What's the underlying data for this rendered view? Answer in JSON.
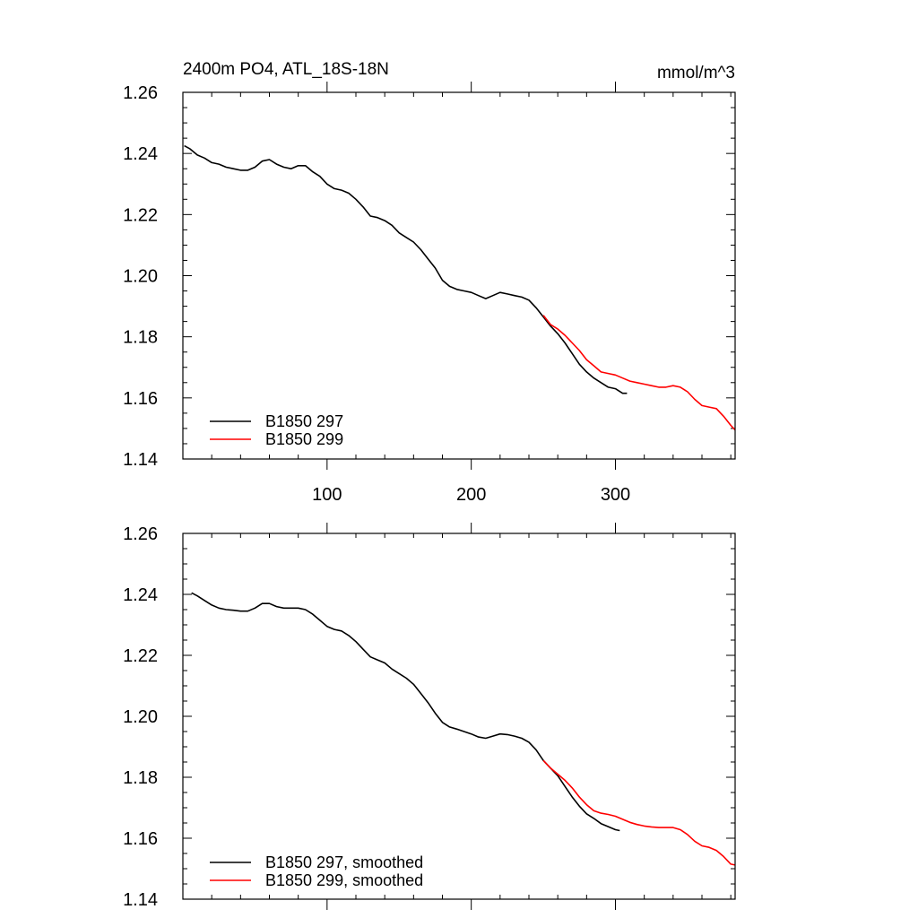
{
  "chart_data": [
    {
      "type": "line",
      "title": "2400m PO4, ATL_18S-18N",
      "units": "mmol/m^3",
      "xlabel": "",
      "ylabel": "",
      "xlim": [
        0,
        383
      ],
      "ylim": [
        1.14,
        1.26
      ],
      "yticks": [
        "1.26",
        "1.24",
        "1.22",
        "1.20",
        "1.18",
        "1.16",
        "1.14"
      ],
      "xticks": [
        "100",
        "200",
        "300"
      ],
      "grid": false,
      "legend_position": "bottom-left",
      "series": [
        {
          "name": "B1850 297",
          "color": "#000000",
          "points": [
            [
              1,
              1.2425
            ],
            [
              5,
              1.2415
            ],
            [
              10,
              1.2395
            ],
            [
              15,
              1.2385
            ],
            [
              20,
              1.237
            ],
            [
              25,
              1.2365
            ],
            [
              30,
              1.2355
            ],
            [
              35,
              1.235
            ],
            [
              40,
              1.2345
            ],
            [
              45,
              1.2345
            ],
            [
              50,
              1.2355
            ],
            [
              55,
              1.2375
            ],
            [
              60,
              1.238
            ],
            [
              65,
              1.2365
            ],
            [
              70,
              1.2355
            ],
            [
              75,
              1.235
            ],
            [
              80,
              1.236
            ],
            [
              85,
              1.236
            ],
            [
              90,
              1.234
            ],
            [
              95,
              1.2325
            ],
            [
              100,
              1.23
            ],
            [
              105,
              1.2285
            ],
            [
              110,
              1.228
            ],
            [
              115,
              1.227
            ],
            [
              120,
              1.225
            ],
            [
              125,
              1.2225
            ],
            [
              130,
              1.2195
            ],
            [
              135,
              1.219
            ],
            [
              140,
              1.218
            ],
            [
              145,
              1.2165
            ],
            [
              150,
              1.214
            ],
            [
              155,
              1.2125
            ],
            [
              160,
              1.211
            ],
            [
              165,
              1.2085
            ],
            [
              170,
              1.2055
            ],
            [
              175,
              1.2025
            ],
            [
              180,
              1.1985
            ],
            [
              185,
              1.1965
            ],
            [
              190,
              1.1955
            ],
            [
              195,
              1.195
            ],
            [
              200,
              1.1945
            ],
            [
              205,
              1.1935
            ],
            [
              210,
              1.1925
            ],
            [
              215,
              1.1935
            ],
            [
              220,
              1.1945
            ],
            [
              225,
              1.194
            ],
            [
              230,
              1.1935
            ],
            [
              235,
              1.193
            ],
            [
              240,
              1.192
            ],
            [
              245,
              1.1895
            ],
            [
              250,
              1.1865
            ],
            [
              255,
              1.1835
            ],
            [
              260,
              1.181
            ],
            [
              265,
              1.178
            ],
            [
              270,
              1.1745
            ],
            [
              275,
              1.171
            ],
            [
              280,
              1.1685
            ],
            [
              285,
              1.1665
            ],
            [
              290,
              1.165
            ],
            [
              295,
              1.1635
            ],
            [
              300,
              1.163
            ],
            [
              305,
              1.1615
            ],
            [
              308,
              1.1615
            ]
          ]
        },
        {
          "name": "B1850 299",
          "color": "#ff0000",
          "points": [
            [
              250,
              1.187
            ],
            [
              255,
              1.184
            ],
            [
              260,
              1.1825
            ],
            [
              265,
              1.1805
            ],
            [
              270,
              1.178
            ],
            [
              275,
              1.1755
            ],
            [
              280,
              1.1725
            ],
            [
              285,
              1.1705
            ],
            [
              290,
              1.1685
            ],
            [
              295,
              1.168
            ],
            [
              300,
              1.1675
            ],
            [
              305,
              1.1665
            ],
            [
              310,
              1.1655
            ],
            [
              315,
              1.165
            ],
            [
              320,
              1.1645
            ],
            [
              325,
              1.164
            ],
            [
              330,
              1.1635
            ],
            [
              335,
              1.1635
            ],
            [
              340,
              1.164
            ],
            [
              345,
              1.1635
            ],
            [
              350,
              1.162
            ],
            [
              355,
              1.1595
            ],
            [
              360,
              1.1575
            ],
            [
              365,
              1.157
            ],
            [
              370,
              1.1565
            ],
            [
              375,
              1.154
            ],
            [
              380,
              1.151
            ],
            [
              383,
              1.1495
            ]
          ]
        }
      ]
    },
    {
      "type": "line",
      "title": "",
      "xlabel": "",
      "ylabel": "",
      "xlim": [
        0,
        383
      ],
      "ylim": [
        1.14,
        1.26
      ],
      "yticks": [
        "1.26",
        "1.24",
        "1.22",
        "1.20",
        "1.18",
        "1.16",
        "1.14"
      ],
      "grid": false,
      "legend_position": "bottom-left",
      "series": [
        {
          "name": "B1850 297, smoothed",
          "color": "#000000",
          "points": [
            [
              6,
              1.2405
            ],
            [
              10,
              1.2395
            ],
            [
              15,
              1.238
            ],
            [
              20,
              1.2365
            ],
            [
              25,
              1.2355
            ],
            [
              30,
              1.235
            ],
            [
              35,
              1.2348
            ],
            [
              40,
              1.2345
            ],
            [
              45,
              1.2345
            ],
            [
              50,
              1.2355
            ],
            [
              55,
              1.237
            ],
            [
              60,
              1.237
            ],
            [
              65,
              1.236
            ],
            [
              70,
              1.2355
            ],
            [
              75,
              1.2355
            ],
            [
              80,
              1.2355
            ],
            [
              85,
              1.235
            ],
            [
              90,
              1.2335
            ],
            [
              95,
              1.2315
            ],
            [
              100,
              1.2295
            ],
            [
              105,
              1.2285
            ],
            [
              110,
              1.228
            ],
            [
              115,
              1.2265
            ],
            [
              120,
              1.2245
            ],
            [
              125,
              1.222
            ],
            [
              130,
              1.2195
            ],
            [
              135,
              1.2185
            ],
            [
              140,
              1.2175
            ],
            [
              145,
              1.2155
            ],
            [
              150,
              1.214
            ],
            [
              155,
              1.2125
            ],
            [
              160,
              1.2105
            ],
            [
              165,
              1.2075
            ],
            [
              170,
              1.2045
            ],
            [
              175,
              1.201
            ],
            [
              180,
              1.198
            ],
            [
              185,
              1.1965
            ],
            [
              190,
              1.1958
            ],
            [
              195,
              1.195
            ],
            [
              200,
              1.1942
            ],
            [
              205,
              1.1932
            ],
            [
              210,
              1.1928
            ],
            [
              215,
              1.1935
            ],
            [
              220,
              1.1942
            ],
            [
              225,
              1.194
            ],
            [
              230,
              1.1935
            ],
            [
              235,
              1.1928
            ],
            [
              240,
              1.1915
            ],
            [
              245,
              1.189
            ],
            [
              250,
              1.1855
            ],
            [
              255,
              1.183
            ],
            [
              260,
              1.1805
            ],
            [
              265,
              1.177
            ],
            [
              270,
              1.1735
            ],
            [
              275,
              1.1705
            ],
            [
              280,
              1.168
            ],
            [
              285,
              1.1665
            ],
            [
              290,
              1.1648
            ],
            [
              295,
              1.1638
            ],
            [
              300,
              1.1628
            ],
            [
              303,
              1.1625
            ]
          ]
        },
        {
          "name": "B1850 299, smoothed",
          "color": "#ff0000",
          "points": [
            [
              250,
              1.1855
            ],
            [
              255,
              1.183
            ],
            [
              260,
              1.181
            ],
            [
              265,
              1.179
            ],
            [
              270,
              1.1765
            ],
            [
              275,
              1.1735
            ],
            [
              280,
              1.171
            ],
            [
              285,
              1.169
            ],
            [
              290,
              1.1682
            ],
            [
              295,
              1.1678
            ],
            [
              300,
              1.1672
            ],
            [
              305,
              1.1662
            ],
            [
              310,
              1.1652
            ],
            [
              315,
              1.1645
            ],
            [
              320,
              1.164
            ],
            [
              325,
              1.1637
            ],
            [
              330,
              1.1635
            ],
            [
              335,
              1.1635
            ],
            [
              340,
              1.1635
            ],
            [
              345,
              1.1628
            ],
            [
              350,
              1.1612
            ],
            [
              355,
              1.159
            ],
            [
              360,
              1.1575
            ],
            [
              365,
              1.157
            ],
            [
              370,
              1.156
            ],
            [
              375,
              1.154
            ],
            [
              380,
              1.1515
            ],
            [
              383,
              1.1512
            ]
          ]
        }
      ]
    }
  ]
}
